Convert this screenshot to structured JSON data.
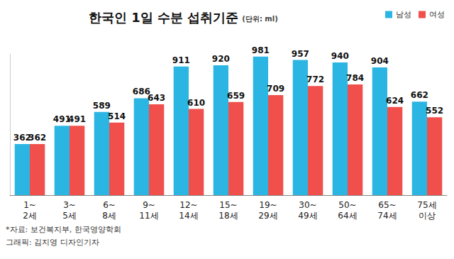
{
  "chart_data": {
    "type": "bar",
    "title": "한국인 1일 수분 섭취기준",
    "subtitle": "(단위: ml)",
    "categories": [
      "1~\n2세",
      "3~\n5세",
      "6~\n8세",
      "9~\n11세",
      "12~\n14세",
      "15~\n18세",
      "19~\n29세",
      "30~\n49세",
      "50~\n64세",
      "65~\n74세",
      "75세\n이상"
    ],
    "series": [
      {
        "name": "남성",
        "color": "#2bb5e2",
        "values": [
          362,
          491,
          589,
          686,
          911,
          920,
          981,
          957,
          940,
          904,
          662
        ]
      },
      {
        "name": "여성",
        "color": "#f04f4b",
        "values": [
          362,
          491,
          514,
          643,
          610,
          659,
          709,
          772,
          784,
          624,
          552
        ]
      }
    ],
    "ylim": [
      0,
      1000
    ],
    "grid": false,
    "legend": "top-right",
    "data_labels": true,
    "tick_labels": "x",
    "annotations": [
      "*자료: 보건복지부, 한국영양학회",
      "그래픽: 김지영 디자인기자"
    ]
  }
}
